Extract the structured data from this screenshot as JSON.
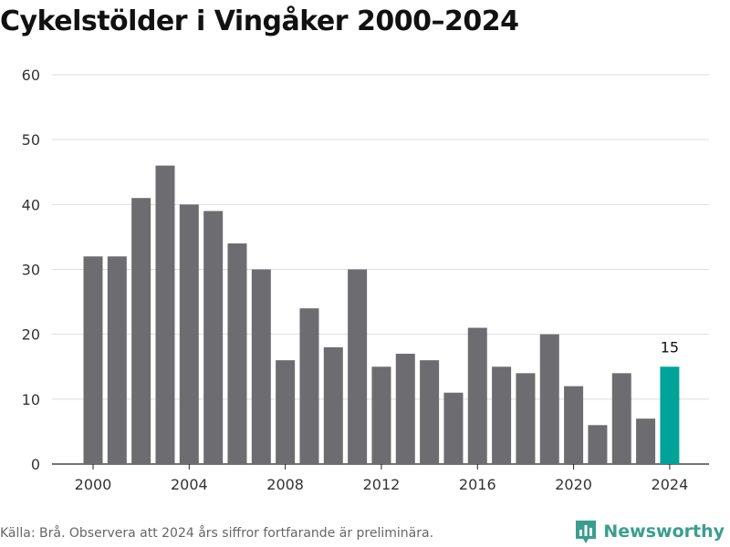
{
  "title": "Cykelstölder i Vingåker 2000–2024",
  "source": "Källa: Brå. Observera att 2024 års siffror fortfarande är preliminära.",
  "brand": {
    "name": "Newsworthy",
    "icon": "newsworthy-logo-icon",
    "color": "#3a9e8f"
  },
  "chart_data": {
    "type": "bar",
    "title": "Cykelstölder i Vingåker 2000–2024",
    "xlabel": "",
    "ylabel": "",
    "categories": [
      "2000",
      "2001",
      "2002",
      "2003",
      "2004",
      "2005",
      "2006",
      "2007",
      "2008",
      "2009",
      "2010",
      "2011",
      "2012",
      "2013",
      "2014",
      "2015",
      "2016",
      "2017",
      "2018",
      "2019",
      "2020",
      "2021",
      "2022",
      "2023",
      "2024"
    ],
    "values": [
      32,
      32,
      41,
      46,
      40,
      39,
      34,
      30,
      16,
      24,
      18,
      30,
      15,
      17,
      16,
      11,
      21,
      15,
      14,
      20,
      12,
      6,
      14,
      7,
      15
    ],
    "ylim": [
      0,
      60
    ],
    "yticks": [
      0,
      10,
      20,
      30,
      40,
      50,
      60
    ],
    "xticks": [
      "2000",
      "2004",
      "2008",
      "2012",
      "2016",
      "2020",
      "2024"
    ],
    "grid": true,
    "bar_color": "#6d6c71",
    "highlight": {
      "category": "2024",
      "color": "#00a398",
      "label": "15"
    }
  }
}
